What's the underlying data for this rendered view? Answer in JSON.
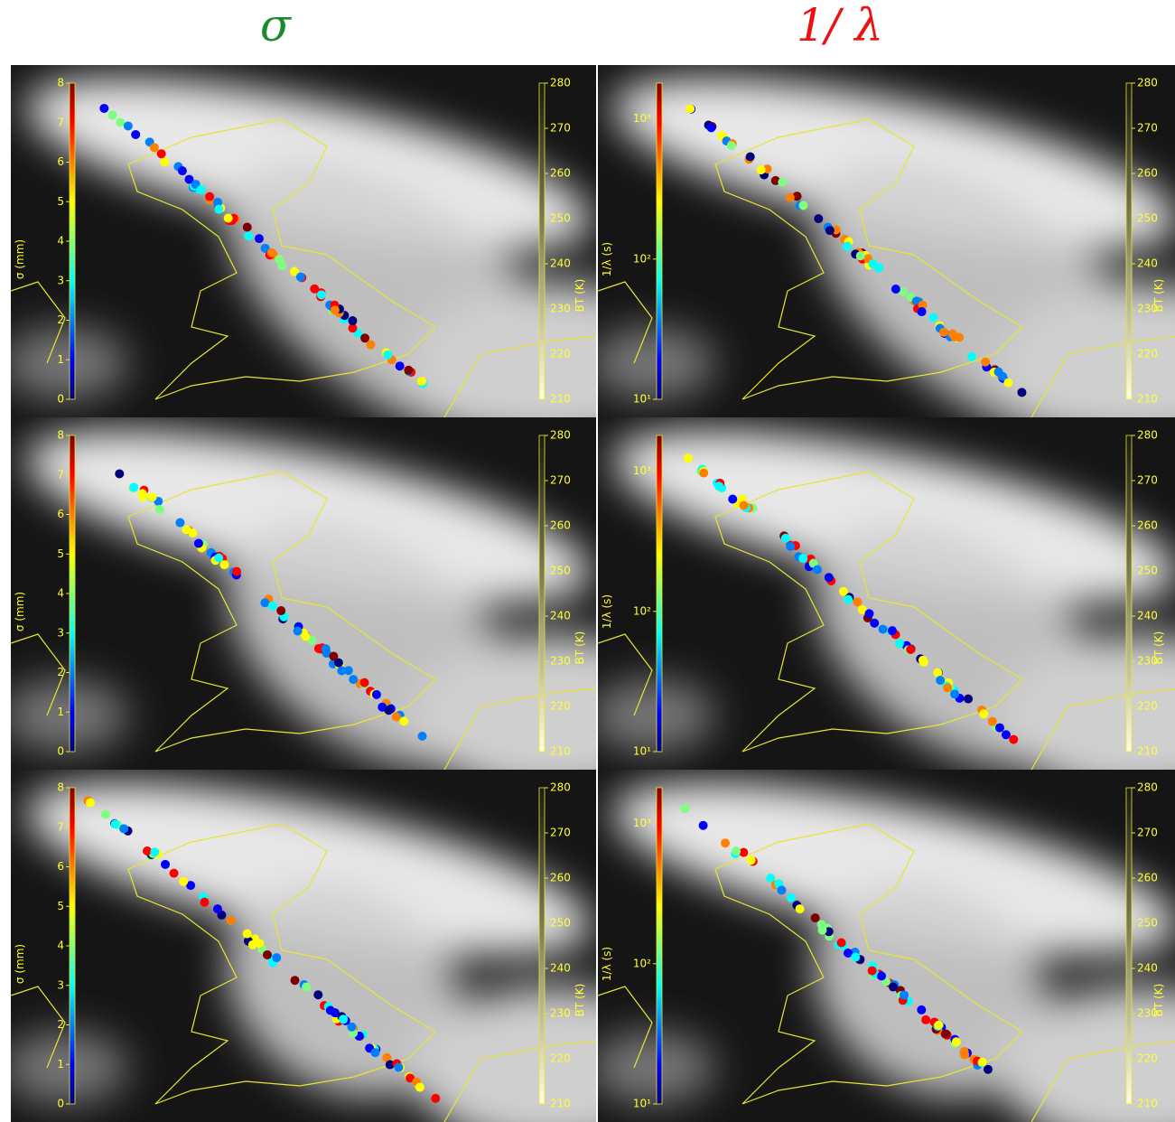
{
  "titles": [
    "σ",
    "1/ λ"
  ],
  "sigma_colorbar": {
    "label": "σ (mm)",
    "lim": [
      0,
      8
    ],
    "ticks": [
      0,
      1,
      2,
      3,
      4,
      5,
      6,
      7,
      8
    ]
  },
  "inv_lambda_colorbar": {
    "label": "1/λ (s)",
    "lim": [
      10,
      1800
    ],
    "log": true,
    "ticks": [
      {
        "value": 10,
        "label": "10¹"
      },
      {
        "value": 100,
        "label": "10²"
      },
      {
        "value": 1000,
        "label": "10³"
      }
    ]
  },
  "bt_colorbar": {
    "label": "BT (K)",
    "lim": [
      210,
      280
    ],
    "ticks": [
      210,
      220,
      230,
      240,
      250,
      260,
      270,
      280
    ]
  }
}
